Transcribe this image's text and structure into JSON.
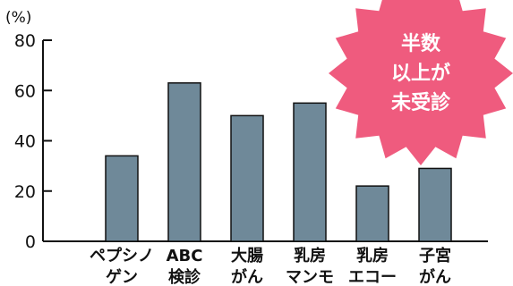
{
  "chart_data": {
    "type": "bar",
    "unit_label": "(%)",
    "categories": [
      [
        "ペプシノ",
        "ゲン"
      ],
      [
        "ABC",
        "検診"
      ],
      [
        "大腸",
        "がん"
      ],
      [
        "乳房",
        "マンモ"
      ],
      [
        "乳房",
        "エコー"
      ],
      [
        "子宮",
        "がん"
      ]
    ],
    "values": [
      34,
      63,
      50,
      55,
      22,
      29
    ],
    "ylim": [
      0,
      80
    ],
    "yticks": [
      0,
      20,
      40,
      60,
      80
    ],
    "bar_color": "#6f8999",
    "grid": false
  },
  "badge": {
    "lines": [
      "半数",
      "以上が",
      "未受診"
    ],
    "color": "#ef5b7e"
  }
}
